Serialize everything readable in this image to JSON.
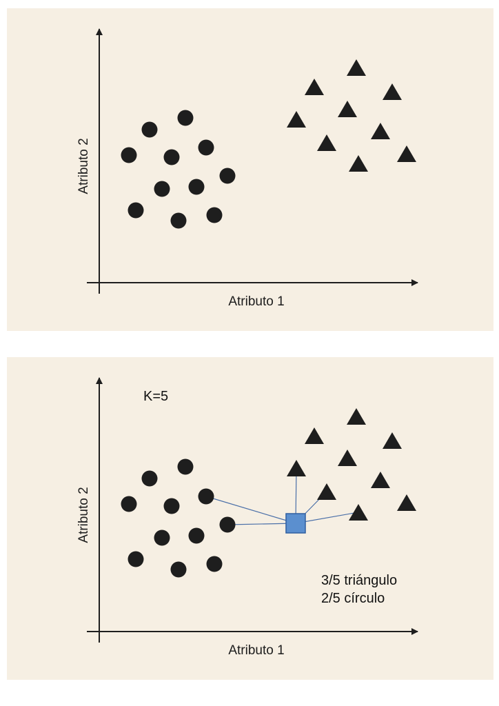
{
  "colors": {
    "background": "#f6efe3",
    "marker": "#1e1e1e",
    "query_fill": "#5b8fcf",
    "query_stroke": "#2f5fa0",
    "neighbor_line": "#4a6fa8"
  },
  "top_panel": {
    "xlabel": "Atributo 1",
    "ylabel": "Atributo 2"
  },
  "bottom_panel": {
    "xlabel": "Atributo 1",
    "ylabel": "Atributo 2",
    "k_label": "K=5",
    "result_triangle": "3/5 triángulo",
    "result_circle": "2/5 círculo"
  },
  "chart_data": [
    {
      "type": "scatter",
      "xlabel": "Atributo 1",
      "ylabel": "Atributo 2",
      "series": [
        {
          "marker": "circle",
          "points": [
            [
              177,
              213
            ],
            [
              207,
              176
            ],
            [
              259,
              159
            ],
            [
              239,
              216
            ],
            [
              289,
              202
            ],
            [
              320,
              243
            ],
            [
              225,
              262
            ],
            [
              275,
              259
            ],
            [
              187,
              293
            ],
            [
              249,
              308
            ],
            [
              301,
              300
            ]
          ]
        },
        {
          "marker": "triangle",
          "points": [
            [
              446,
              114
            ],
            [
              507,
              86
            ],
            [
              559,
              121
            ],
            [
              420,
              161
            ],
            [
              494,
              146
            ],
            [
              542,
              178
            ],
            [
              464,
              195
            ],
            [
              580,
              211
            ],
            [
              510,
              225
            ]
          ]
        }
      ]
    },
    {
      "type": "scatter",
      "xlabel": "Atributo 1",
      "ylabel": "Atributo 2",
      "k": 5,
      "series": [
        {
          "marker": "circle",
          "points": [
            [
              177,
              213
            ],
            [
              207,
              176
            ],
            [
              259,
              159
            ],
            [
              239,
              216
            ],
            [
              289,
              202
            ],
            [
              320,
              243
            ],
            [
              225,
              262
            ],
            [
              275,
              259
            ],
            [
              187,
              293
            ],
            [
              249,
              308
            ],
            [
              301,
              300
            ]
          ]
        },
        {
          "marker": "triangle",
          "points": [
            [
              446,
              114
            ],
            [
              507,
              86
            ],
            [
              559,
              121
            ],
            [
              420,
              161
            ],
            [
              494,
              146
            ],
            [
              542,
              178
            ],
            [
              464,
              195
            ],
            [
              580,
              211
            ],
            [
              510,
              225
            ]
          ]
        },
        {
          "marker": "square",
          "points": [
            [
              419,
              241
            ]
          ]
        }
      ],
      "neighbors": [
        [
          289,
          202
        ],
        [
          320,
          243
        ],
        [
          420,
          161
        ],
        [
          464,
          195
        ],
        [
          510,
          225
        ]
      ]
    }
  ]
}
